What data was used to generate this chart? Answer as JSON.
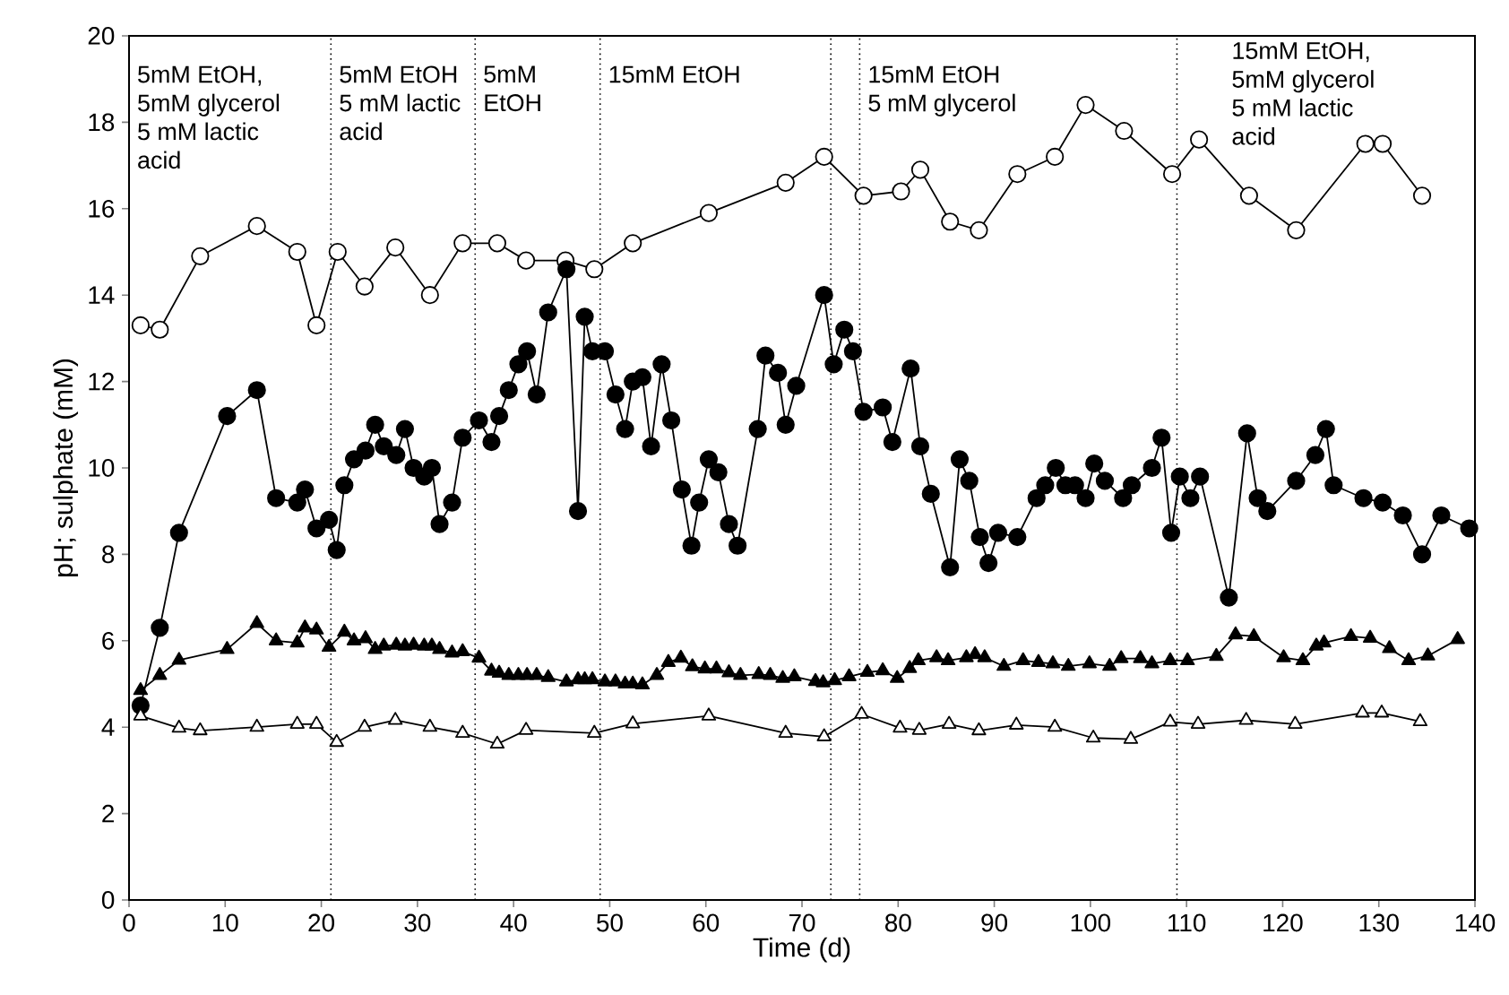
{
  "chart_data": {
    "type": "line",
    "xlabel": "Time (d)",
    "ylabel": "pH; sulphate (mM)",
    "xlim": [
      0,
      140
    ],
    "xticks": [
      0,
      10,
      20,
      30,
      40,
      50,
      60,
      70,
      80,
      90,
      100,
      110,
      120,
      130,
      140
    ],
    "ylim": [
      0,
      20
    ],
    "yticks": [
      0,
      2,
      4,
      6,
      8,
      10,
      12,
      14,
      16,
      18,
      20
    ],
    "grid": false,
    "line_style": "solid",
    "series": [
      {
        "color": "#ffffff",
        "marker": "circle",
        "x": [
          1.2,
          3.2,
          7.4,
          13.3,
          17.5,
          19.5,
          21.7,
          24.5,
          27.7,
          31.3,
          34.7,
          38.3,
          41.3,
          45.4,
          48.4,
          52.4,
          60.3,
          68.3,
          72.3,
          76.4,
          80.3,
          82.3,
          85.4,
          88.4,
          92.4,
          96.3,
          99.5,
          103.5,
          108.5,
          111.3,
          116.5,
          121.4,
          128.6,
          130.4,
          134.5
        ],
        "values": [
          13.3,
          13.2,
          14.9,
          15.6,
          15.0,
          13.3,
          15.0,
          14.2,
          15.1,
          14.0,
          15.2,
          15.2,
          14.8,
          14.8,
          14.6,
          15.2,
          15.9,
          16.6,
          17.2,
          16.3,
          16.4,
          16.9,
          15.7,
          15.5,
          16.8,
          17.2,
          18.4,
          17.8,
          16.8,
          17.6,
          16.3,
          15.5,
          17.5,
          17.5,
          16.3
        ]
      },
      {
        "color": "#000000",
        "marker": "circle",
        "x": [
          1.2,
          3.2,
          5.2,
          10.2,
          13.3,
          15.3,
          17.5,
          18.3,
          19.5,
          20.8,
          21.6,
          22.4,
          23.4,
          24.6,
          25.6,
          26.5,
          27.8,
          28.7,
          29.6,
          30.7,
          31.5,
          32.3,
          33.6,
          34.7,
          36.4,
          37.7,
          38.5,
          39.5,
          40.5,
          41.4,
          42.4,
          43.6,
          45.5,
          46.7,
          47.4,
          48.2,
          49.5,
          50.6,
          51.6,
          52.4,
          53.4,
          54.3,
          55.4,
          56.4,
          57.5,
          58.5,
          59.3,
          60.3,
          61.3,
          62.4,
          63.3,
          65.4,
          66.2,
          67.5,
          68.3,
          69.4,
          72.3,
          73.3,
          74.4,
          75.3,
          76.4,
          78.4,
          79.4,
          81.3,
          82.3,
          83.4,
          85.4,
          86.4,
          87.4,
          88.5,
          89.4,
          90.4,
          92.4,
          94.4,
          95.3,
          96.4,
          97.4,
          98.4,
          99.5,
          100.4,
          101.5,
          103.4,
          104.3,
          106.4,
          107.4,
          108.4,
          109.3,
          110.4,
          111.4,
          114.4,
          116.3,
          117.4,
          118.4,
          121.4,
          123.4,
          124.5,
          125.3,
          128.4,
          130.4,
          132.5,
          134.5,
          136.5,
          139.4
        ],
        "values": [
          4.5,
          6.3,
          8.5,
          11.2,
          11.8,
          9.3,
          9.2,
          9.5,
          8.6,
          8.8,
          8.1,
          9.6,
          10.2,
          10.4,
          11.0,
          10.5,
          10.3,
          10.9,
          10.0,
          9.8,
          10.0,
          8.7,
          9.2,
          10.7,
          11.1,
          10.6,
          11.2,
          11.8,
          12.4,
          12.7,
          11.7,
          13.6,
          14.6,
          9.0,
          13.5,
          12.7,
          12.7,
          11.7,
          10.9,
          12.0,
          12.1,
          10.5,
          12.4,
          11.1,
          9.5,
          8.2,
          9.2,
          10.2,
          9.9,
          8.7,
          8.2,
          10.9,
          12.6,
          12.2,
          11.0,
          11.9,
          14.0,
          12.4,
          13.2,
          12.7,
          11.3,
          11.4,
          10.6,
          12.3,
          10.5,
          9.4,
          7.7,
          10.2,
          9.7,
          8.4,
          7.8,
          8.5,
          8.4,
          9.3,
          9.6,
          10.0,
          9.6,
          9.6,
          9.3,
          10.1,
          9.7,
          9.3,
          9.6,
          10.0,
          10.7,
          8.5,
          9.8,
          9.3,
          9.8,
          7.0,
          10.8,
          9.3,
          9.0,
          9.7,
          10.3,
          10.9,
          9.6,
          9.3,
          9.2,
          8.9,
          8.0,
          8.9,
          8.6
        ]
      },
      {
        "color": "#000000",
        "marker": "triangle",
        "x": [
          1.2,
          3.2,
          5.2,
          10.2,
          13.3,
          15.3,
          17.5,
          18.3,
          19.5,
          20.8,
          22.4,
          23.4,
          24.6,
          25.6,
          26.5,
          27.8,
          28.7,
          29.6,
          30.7,
          31.5,
          32.3,
          33.6,
          34.7,
          36.4,
          37.7,
          38.5,
          39.5,
          40.5,
          41.4,
          42.4,
          43.6,
          45.5,
          46.7,
          47.4,
          48.2,
          49.5,
          50.6,
          51.6,
          52.4,
          53.4,
          54.9,
          56.1,
          57.4,
          58.6,
          59.9,
          61.1,
          62.4,
          63.6,
          65.5,
          66.7,
          68.0,
          69.2,
          71.4,
          72.2,
          73.4,
          74.9,
          76.8,
          78.4,
          79.9,
          81.2,
          82.1,
          84.0,
          85.2,
          87.1,
          88.0,
          89.0,
          91.0,
          93.0,
          94.6,
          96.1,
          97.7,
          99.9,
          102.0,
          103.2,
          105.2,
          106.4,
          108.3,
          110.1,
          113.1,
          115.1,
          117.0,
          120.1,
          122.1,
          123.5,
          124.3,
          127.1,
          129.1,
          131.1,
          133.1,
          135.1,
          138.2
        ],
        "values": [
          4.85,
          5.2,
          5.55,
          5.8,
          6.4,
          6.0,
          5.95,
          6.3,
          6.25,
          5.85,
          6.2,
          6.0,
          6.05,
          5.8,
          5.88,
          5.9,
          5.88,
          5.9,
          5.88,
          5.88,
          5.8,
          5.72,
          5.75,
          5.6,
          5.3,
          5.25,
          5.2,
          5.2,
          5.2,
          5.2,
          5.15,
          5.05,
          5.1,
          5.1,
          5.1,
          5.05,
          5.05,
          5.0,
          5.0,
          4.98,
          5.2,
          5.5,
          5.6,
          5.4,
          5.35,
          5.35,
          5.26,
          5.2,
          5.22,
          5.2,
          5.13,
          5.17,
          5.06,
          5.03,
          5.08,
          5.17,
          5.27,
          5.31,
          5.13,
          5.36,
          5.54,
          5.61,
          5.54,
          5.61,
          5.68,
          5.61,
          5.41,
          5.54,
          5.5,
          5.47,
          5.41,
          5.47,
          5.41,
          5.59,
          5.59,
          5.47,
          5.54,
          5.54,
          5.64,
          6.14,
          6.1,
          5.61,
          5.54,
          5.88,
          5.95,
          6.1,
          6.06,
          5.82,
          5.54,
          5.65,
          6.03
        ]
      },
      {
        "color": "#ffffff",
        "marker": "triangle",
        "x": [
          1.2,
          5.2,
          7.4,
          13.3,
          17.5,
          19.5,
          21.6,
          24.5,
          27.7,
          31.3,
          34.7,
          38.3,
          41.3,
          48.4,
          52.4,
          60.3,
          68.3,
          72.3,
          76.2,
          80.2,
          82.2,
          85.3,
          88.4,
          92.3,
          96.3,
          100.3,
          104.2,
          108.3,
          111.2,
          116.2,
          121.3,
          128.3,
          130.3,
          134.3
        ],
        "values": [
          4.26,
          3.98,
          3.92,
          4.0,
          4.07,
          4.07,
          3.65,
          4.0,
          4.16,
          4.0,
          3.86,
          3.61,
          3.93,
          3.86,
          4.08,
          4.26,
          3.86,
          3.78,
          4.3,
          3.98,
          3.93,
          4.07,
          3.92,
          4.05,
          4.0,
          3.75,
          3.72,
          4.12,
          4.07,
          4.16,
          4.07,
          4.33,
          4.33,
          4.13
        ]
      }
    ],
    "ref_lines": [
      {
        "axis": "x",
        "value": 21,
        "line_style": "dotted"
      },
      {
        "axis": "x",
        "value": 36,
        "line_style": "dotted"
      },
      {
        "axis": "x",
        "value": 49,
        "line_style": "dotted"
      },
      {
        "axis": "x",
        "value": 73,
        "line_style": "dotted"
      },
      {
        "axis": "x",
        "value": 76,
        "line_style": "dotted"
      },
      {
        "axis": "x",
        "value": 109,
        "line_style": "dotted"
      }
    ],
    "annotations": [
      "5mM EtOH, 5mM glycerol 5 mM lactic acid",
      "5mM EtOH 5 mM lactic acid",
      "5mM EtOH",
      "15mM EtOH",
      "15mM EtOH 5 mM glycerol",
      "15mM EtOH, 5mM glycerol 5 mM lactic acid"
    ]
  }
}
